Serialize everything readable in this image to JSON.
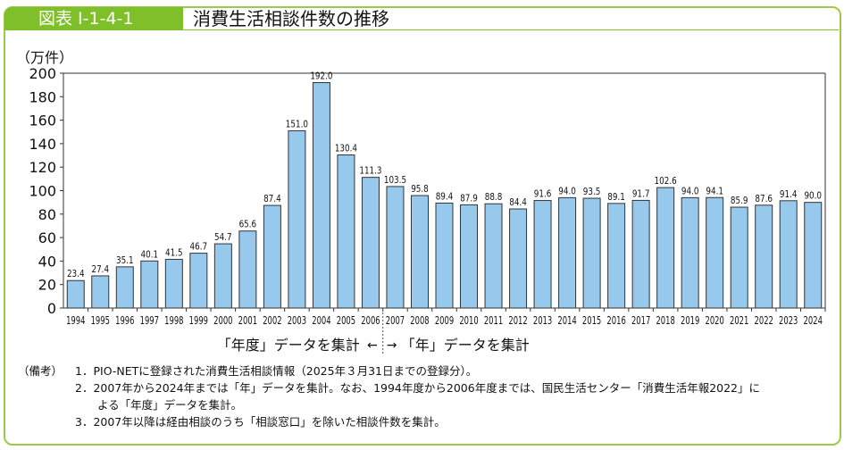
{
  "header": {
    "label": "図表 I-1-4-1",
    "title": "消費生活相談件数の推移"
  },
  "chart_data": {
    "type": "bar",
    "title": "消費生活相談件数の推移",
    "ylabel": "（万件）",
    "ylim": [
      0,
      200
    ],
    "yticks": [
      0,
      20,
      40,
      60,
      80,
      100,
      120,
      140,
      160,
      180,
      200
    ],
    "categories": [
      "1994",
      "1995",
      "1996",
      "1997",
      "1998",
      "1999",
      "2000",
      "2001",
      "2002",
      "2003",
      "2004",
      "2005",
      "2006",
      "2007",
      "2008",
      "2009",
      "2010",
      "2011",
      "2012",
      "2013",
      "2014",
      "2015",
      "2016",
      "2017",
      "2018",
      "2019",
      "2020",
      "2021",
      "2022",
      "2023",
      "2024"
    ],
    "values": [
      23.4,
      27.4,
      35.1,
      40.1,
      41.5,
      46.7,
      54.7,
      65.6,
      87.4,
      151.0,
      192.0,
      130.4,
      111.3,
      103.5,
      95.8,
      89.4,
      87.9,
      88.8,
      84.4,
      91.6,
      94.0,
      93.5,
      89.1,
      91.7,
      102.6,
      94.0,
      94.1,
      85.9,
      87.6,
      91.4,
      90.0
    ],
    "bar_color": "#97c9ec",
    "annotations": {
      "left": "「年度」データを集計",
      "right": "「年」データを集計"
    }
  },
  "notes": {
    "label": "（備考）",
    "items": [
      "1．PIO-NETに登録された消費生活相談情報（2025年３月31日までの登録分）。",
      "2．2007年から2024年までは「年」データを集計。なお、1994年度から2006年度までは、国民生活センター「消費生活年報2022」に",
      "　　よる「年度」データを集計。",
      "3．2007年以降は経由相談のうち「相談窓口」を除いた相談件数を集計。"
    ]
  }
}
